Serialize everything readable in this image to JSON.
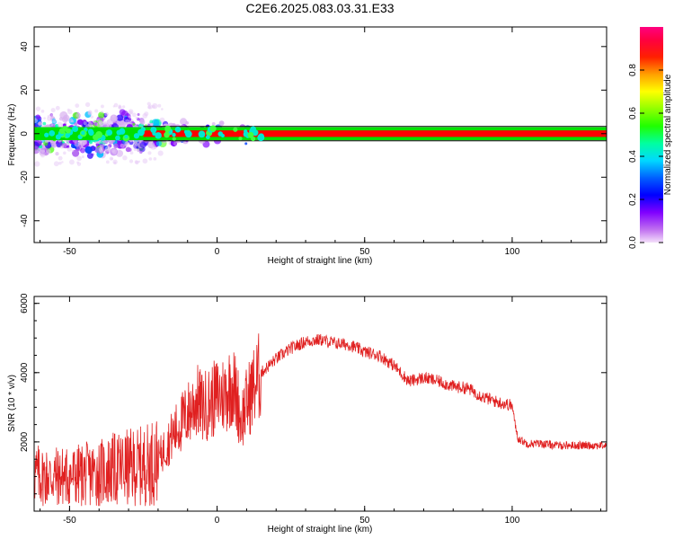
{
  "chart_data": [
    {
      "type": "heatmap",
      "title": "C2E6.2025.083.03.31.E33",
      "xlabel": "Height of straight line (km)",
      "ylabel": "Frequency (Hz)",
      "xlim": [
        -62,
        132
      ],
      "ylim": [
        -50,
        49
      ],
      "xticks": [
        "-50",
        "0",
        "50",
        "100"
      ],
      "yticks": [
        "-40",
        "-20",
        "0",
        "20",
        "40"
      ],
      "grid": false,
      "colorbar": {
        "label": "Normalized spectral amplitude",
        "ticks": [
          "0.0",
          "0.2",
          "0.4",
          "0.6",
          "0.8"
        ],
        "range": [
          0,
          1
        ],
        "colormap": [
          "#f0d0f8",
          "#a020f0",
          "#0000ff",
          "#00e0ff",
          "#00ff00",
          "#ffff00",
          "#ff8000",
          "#ff0000",
          "#ff0080"
        ]
      },
      "description_points": {
        "carrier_band_frequency": 0,
        "carrier_band_halfwidth_hz": 1.5,
        "carrier_band_color": "#ff0000",
        "noisy_region_x": [
          -62,
          -10
        ],
        "noisy_region_freq_spread": [
          -15,
          10
        ]
      }
    },
    {
      "type": "line",
      "title": "",
      "xlabel": "Height of straight line (km)",
      "ylabel": "SNR (10 * v/v)",
      "xlim": [
        -62,
        132
      ],
      "ylim": [
        0,
        6200
      ],
      "xticks": [
        "-50",
        "0",
        "50",
        "100"
      ],
      "yticks": [
        "2000",
        "4000",
        "6000"
      ],
      "grid": false,
      "series": [
        {
          "color": "#e02020",
          "x": [
            -62,
            -60,
            -55,
            -50,
            -45,
            -40,
            -35,
            -30,
            -25,
            -20,
            -15,
            -10,
            -7,
            -5,
            -3,
            0,
            3,
            5,
            7,
            8,
            10,
            12,
            15,
            20,
            25,
            30,
            35,
            40,
            45,
            50,
            55,
            60,
            65,
            70,
            75,
            80,
            85,
            90,
            95,
            100,
            101,
            102,
            105,
            110,
            115,
            120,
            125,
            132
          ],
          "y": [
            1100,
            1000,
            1000,
            1000,
            1050,
            1100,
            1200,
            1250,
            1300,
            1500,
            2200,
            2800,
            3200,
            3000,
            3100,
            3300,
            3400,
            3700,
            3200,
            2600,
            3100,
            3500,
            4000,
            4400,
            4700,
            4900,
            4950,
            4850,
            4800,
            4600,
            4500,
            4200,
            3750,
            3850,
            3750,
            3600,
            3550,
            3300,
            3150,
            3050,
            2500,
            2100,
            1950,
            1950,
            1900,
            1900,
            1900,
            1900
          ]
        }
      ]
    }
  ]
}
